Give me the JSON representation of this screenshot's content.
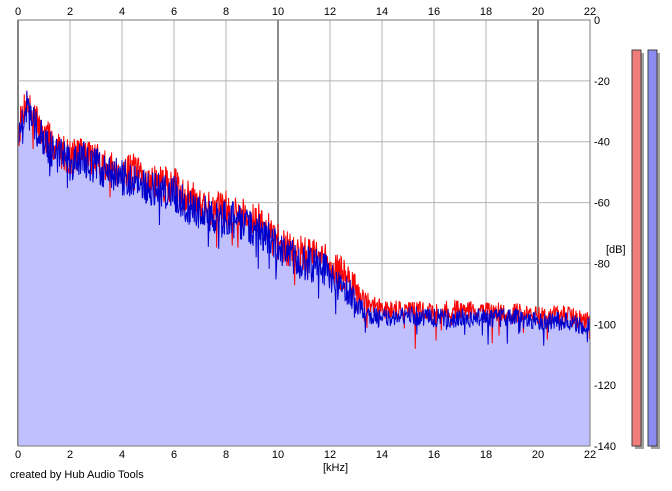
{
  "credit": "created by Hub Audio Tools",
  "chart_data": {
    "type": "area",
    "xlabel": "[kHz]",
    "ylabel": "[dB]",
    "xlim": [
      0,
      22
    ],
    "ylim": [
      -140,
      0
    ],
    "x_ticks": [
      0,
      2,
      4,
      6,
      8,
      10,
      12,
      14,
      16,
      18,
      20,
      22
    ],
    "x_tick_labels": [
      "0",
      "2",
      "4",
      "6",
      "8",
      "10",
      "12",
      "14",
      "16",
      "18",
      "20",
      "22"
    ],
    "y_ticks": [
      0,
      -20,
      -40,
      -60,
      -80,
      -100,
      -120,
      -140
    ],
    "y_tick_labels": [
      "0",
      "-20",
      "-40",
      "-60",
      "-80",
      "-100",
      "-120",
      "-140"
    ],
    "grid": true,
    "x_axis_position": "top-and-bottom",
    "y_axis_position": "right",
    "colors": {
      "fill": "#c0c0ff",
      "red_series": "#ff0000",
      "blue_series": "#0000cc",
      "grid": "#b4b4b4",
      "grid_major": "#8c8c8c",
      "left_meter": "#f07c7c",
      "right_meter": "#8c8cf0"
    },
    "meters": [
      {
        "color": "#f07c7c",
        "level": 1.0
      },
      {
        "color": "#8c8cf0",
        "level": 1.0
      }
    ],
    "series": [
      {
        "color": "#ff0000",
        "x": [
          0.05,
          0.3,
          0.6,
          1.0,
          1.5,
          2.0,
          2.5,
          3.0,
          3.5,
          4.0,
          4.5,
          5.0,
          5.5,
          6.0,
          6.5,
          7.0,
          7.5,
          8.0,
          8.5,
          9.0,
          9.5,
          10.0,
          10.5,
          11.0,
          11.5,
          12.0,
          12.5,
          13.0,
          13.5,
          14.0,
          15.0,
          16.0,
          17.0,
          18.0,
          19.0,
          20.0,
          21.0,
          22.0
        ],
        "y": [
          -36,
          -26,
          -32,
          -38,
          -42,
          -45,
          -43,
          -46,
          -49,
          -49,
          -50,
          -53,
          -54,
          -54,
          -58,
          -60,
          -62,
          -62,
          -63,
          -64,
          -68,
          -73,
          -76,
          -77,
          -78,
          -80,
          -84,
          -89,
          -93,
          -95,
          -95,
          -96,
          -95,
          -96,
          -96,
          -97,
          -97,
          -99
        ]
      },
      {
        "color": "#0000cc",
        "x": [
          0.05,
          0.3,
          0.6,
          1.0,
          1.5,
          2.0,
          2.5,
          3.0,
          3.5,
          4.0,
          4.5,
          5.0,
          5.5,
          6.0,
          6.5,
          7.0,
          7.5,
          8.0,
          8.5,
          9.0,
          9.5,
          10.0,
          10.5,
          11.0,
          11.5,
          12.0,
          12.5,
          13.0,
          13.5,
          14.0,
          15.0,
          16.0,
          17.0,
          18.0,
          19.0,
          20.0,
          21.0,
          22.0
        ],
        "y": [
          -38,
          -28,
          -34,
          -40,
          -44,
          -47,
          -46,
          -48,
          -50,
          -52,
          -52,
          -55,
          -56,
          -57,
          -61,
          -63,
          -64,
          -65,
          -66,
          -68,
          -71,
          -75,
          -78,
          -80,
          -81,
          -84,
          -88,
          -93,
          -97,
          -98,
          -97,
          -98,
          -98,
          -98,
          -98,
          -99,
          -99,
          -101
        ]
      }
    ]
  }
}
